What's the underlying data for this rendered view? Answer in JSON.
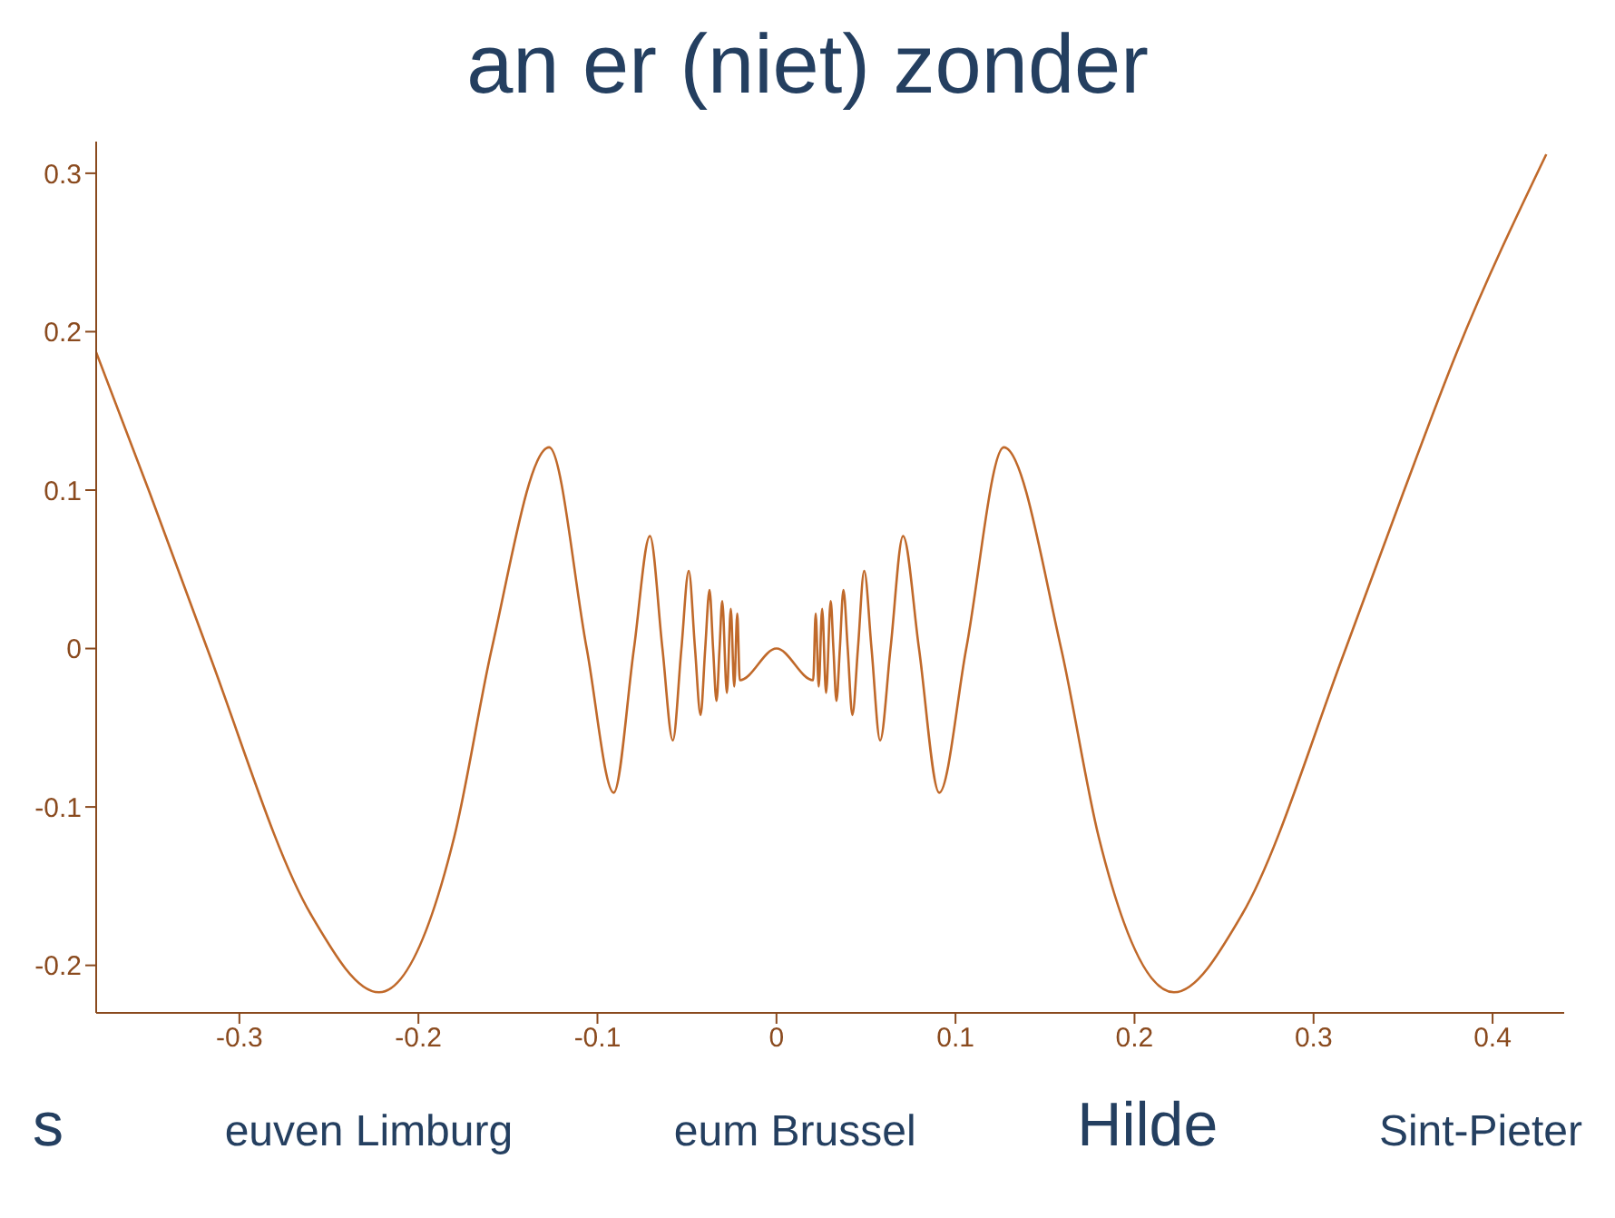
{
  "chart_data": {
    "type": "line",
    "marker": "none",
    "line_style": "solid",
    "xlim": [
      -0.38,
      0.44
    ],
    "ylim": [
      -0.23,
      0.32
    ],
    "xticks": [
      -0.3,
      -0.2,
      -0.1,
      0,
      0.1,
      0.2,
      0.3,
      0.4
    ],
    "yticks": [
      -0.2,
      -0.1,
      0,
      0.1,
      0.2,
      0.3
    ],
    "series": [
      {
        "color": "#c0692a",
        "x": [
          -0.38,
          -0.35,
          -0.318,
          -0.26,
          -0.222,
          -0.18,
          -0.159,
          -0.127,
          -0.106,
          -0.0909,
          -0.0796,
          -0.0707,
          -0.0637,
          -0.0579,
          -0.0531,
          -0.049,
          -0.0455,
          -0.0424,
          -0.0398,
          -0.0374,
          -0.0354,
          -0.0335,
          -0.0318,
          -0.0303,
          -0.0277,
          -0.0255,
          -0.0236,
          -0.0219,
          -0.0205,
          0,
          0.0205,
          0.0219,
          0.0236,
          0.0255,
          0.0277,
          0.0303,
          0.0318,
          0.0335,
          0.0354,
          0.0374,
          0.0398,
          0.0424,
          0.0455,
          0.049,
          0.0531,
          0.0579,
          0.0637,
          0.0707,
          0.0796,
          0.0909,
          0.106,
          0.127,
          0.159,
          0.18,
          0.222,
          0.26,
          0.318,
          0.35,
          0.38,
          0.43
        ],
        "values": [
          0.187,
          0.098,
          0,
          -0.168,
          -0.217,
          -0.119,
          0,
          0.127,
          0,
          -0.091,
          0,
          0.071,
          0,
          -0.058,
          0,
          0.049,
          0,
          -0.042,
          0,
          0.037,
          0,
          -0.033,
          0,
          0.03,
          -0.028,
          0.025,
          -0.024,
          0.022,
          -0.02,
          0,
          -0.02,
          0.022,
          -0.024,
          0.025,
          -0.028,
          0.03,
          0,
          -0.033,
          0,
          0.037,
          0,
          -0.042,
          0,
          0.049,
          0,
          -0.058,
          0,
          0.071,
          0,
          -0.091,
          0,
          0.127,
          0,
          -0.119,
          -0.217,
          -0.168,
          0,
          0.098,
          0.187,
          0.312
        ]
      }
    ],
    "annotations": [
      "an er (niet) zonder",
      "s",
      "euven Limburg",
      "eum Brussel",
      "Hilde",
      "Sint-Pieter"
    ]
  }
}
